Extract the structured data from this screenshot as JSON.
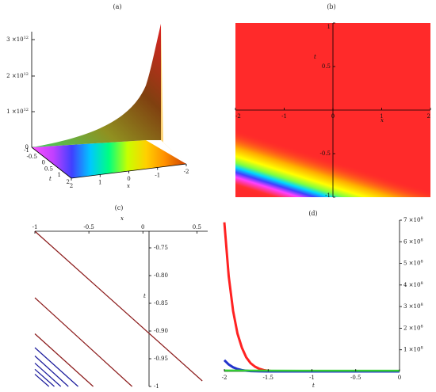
{
  "panels": {
    "a": {
      "label": "(a)"
    },
    "b": {
      "label": "(b)"
    },
    "c": {
      "label": "(c)"
    },
    "d": {
      "label": "(d)"
    }
  },
  "chart_data": [
    {
      "id": "a",
      "type": "surface3d",
      "title": "(a)",
      "xlabel": "x",
      "ylabel": "t",
      "z_ticks": [
        "0",
        "1 ×10^12",
        "2 ×10^12",
        "3 ×10^12"
      ],
      "x_ticks": [
        "2",
        "1",
        "0",
        "-1",
        "-2"
      ],
      "t_ticks": [
        "-1",
        "-0.5",
        "0",
        "0.5",
        "1"
      ],
      "t_ticks_extra": [
        "2"
      ],
      "xlim": [
        -2,
        2
      ],
      "ylim": [
        -1,
        1
      ],
      "zlim": [
        0,
        3000000000000.0
      ]
    },
    {
      "id": "b",
      "type": "heatmap",
      "title": "(b)",
      "xlabel": "x",
      "ylabel": "t",
      "x_ticks": [
        "-2",
        "-1",
        "0",
        "1",
        "2"
      ],
      "y_ticks": [
        "1",
        "0.5",
        "-0.5",
        "-1"
      ],
      "xlim": [
        -2,
        2
      ],
      "ylim": [
        -1,
        1
      ],
      "band": {
        "x": [
          -2,
          0
        ],
        "t": [
          -0.75,
          -1.0
        ]
      }
    },
    {
      "id": "c",
      "type": "line",
      "title": "(c)",
      "xlabel": "x",
      "ylabel": "t",
      "x_ticks": [
        "-1",
        "-0.5",
        "0",
        "0.5"
      ],
      "y_ticks": [
        "-0.75",
        "-0.80",
        "-0.85",
        "-0.90",
        "-0.95",
        "-1"
      ],
      "xlim": [
        -1,
        0.6
      ],
      "ylim": [
        -1,
        -0.72
      ],
      "lines": [
        {
          "x": [
            -1,
            0.55
          ],
          "y": [
            -0.72,
            -0.99
          ]
        },
        {
          "x": [
            -1,
            -0.1
          ],
          "y": [
            -0.84,
            -1.0
          ]
        },
        {
          "x": [
            -1,
            -0.46
          ],
          "y": [
            -0.905,
            -1.0
          ]
        },
        {
          "x": [
            -1,
            -0.6
          ],
          "y": [
            -0.93,
            -1.0
          ]
        },
        {
          "x": [
            -1,
            -0.69
          ],
          "y": [
            -0.945,
            -1.0
          ]
        },
        {
          "x": [
            -1,
            -0.76
          ],
          "y": [
            -0.958,
            -1.0
          ]
        },
        {
          "x": [
            -1,
            -0.82
          ],
          "y": [
            -0.969,
            -1.0
          ]
        },
        {
          "x": [
            -1,
            -0.87
          ],
          "y": [
            -0.978,
            -1.0
          ]
        }
      ],
      "colors": [
        "#8b1a1a",
        "#1a1a9c"
      ]
    },
    {
      "id": "d",
      "type": "line",
      "title": "(d)",
      "xlabel": "t",
      "ylabel": "",
      "x_ticks": [
        "-2",
        "-1.5",
        "-1",
        "-0.5",
        "0"
      ],
      "y_ticks": [
        "1 ×10^8",
        "2 ×10^8",
        "3 ×10^8",
        "4 ×10^8",
        "5 ×10^8",
        "6 ×10^8",
        "7 ×10^8"
      ],
      "xlim": [
        -2,
        0
      ],
      "ylim": [
        0,
        700000000.0
      ],
      "series": [
        {
          "color": "#ff2222",
          "x": [
            -2.0,
            -1.95,
            -1.9,
            -1.85,
            -1.8,
            -1.75,
            -1.7,
            -1.65,
            -1.6,
            -1.55,
            -1.5,
            -1.45,
            -1.4,
            -1.3,
            -1.2,
            -1.0,
            0.0
          ],
          "y": [
            690000000.0,
            440000000.0,
            280000000.0,
            175000000.0,
            110000000.0,
            65000000.0,
            38000000.0,
            22000000.0,
            12000000.0,
            6000000.0,
            3000000.0,
            1500000.0,
            600000.0,
            100000.0,
            0,
            0,
            0
          ]
        },
        {
          "color": "#2233cc",
          "x": [
            -2.0,
            -1.95,
            -1.9,
            -1.85,
            -1.8,
            -1.75,
            -1.7,
            -1.6,
            -1.5,
            -1.0,
            0.0
          ],
          "y": [
            52000000.0,
            32000000.0,
            19000000.0,
            11000000.0,
            6000000.0,
            3000000.0,
            1500000.0,
            300000.0,
            0,
            0,
            0
          ]
        },
        {
          "color": "#33cc33",
          "x": [
            -2.0,
            -1.0,
            0.0
          ],
          "y": [
            4000000.0,
            3000000.0,
            3000000.0
          ]
        }
      ]
    }
  ]
}
